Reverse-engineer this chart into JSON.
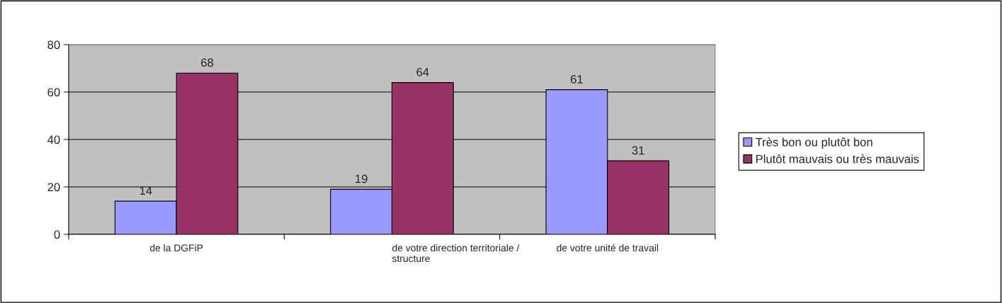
{
  "chart_data": {
    "type": "bar",
    "categories": [
      "de la DGFiP",
      "de votre direction territoriale /\nstructure",
      "de votre unité de travail"
    ],
    "series": [
      {
        "name": "Très bon ou plutôt bon",
        "color": "#9999ff",
        "values": [
          14,
          19,
          61
        ]
      },
      {
        "name": "Plutôt mauvais ou très mauvais",
        "color": "#993366",
        "values": [
          68,
          64,
          31
        ]
      }
    ],
    "ylim": [
      0,
      80
    ],
    "yticks": [
      0,
      20,
      40,
      60,
      80
    ],
    "grid": "y",
    "legend": "right",
    "data_labels": true
  }
}
